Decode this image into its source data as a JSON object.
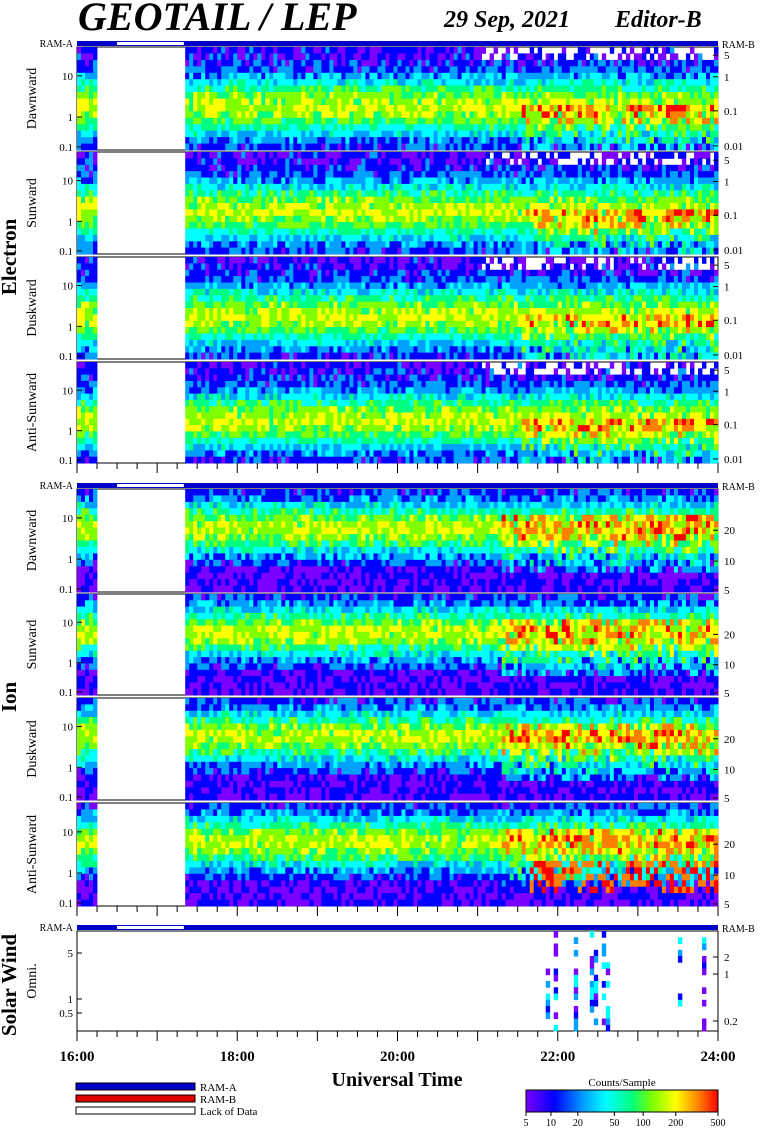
{
  "header": {
    "title": "GEOTAIL / LEP",
    "date": "29 Sep, 2021",
    "editor": "Editor-B"
  },
  "ram": {
    "a_label": "RAM-A",
    "b_label": "RAM-B"
  },
  "groups": [
    {
      "name": "Electron",
      "panels": [
        {
          "label": "Dawnward",
          "left_ticks": [
            "10",
            "1",
            "0.1"
          ],
          "right_ticks": [
            "5",
            "1",
            "0.1",
            "0.01"
          ]
        },
        {
          "label": "Sunward",
          "left_ticks": [
            "10",
            "1",
            "0.1"
          ],
          "right_ticks": [
            "5",
            "1",
            "0.1",
            "0.01"
          ]
        },
        {
          "label": "Duskward",
          "left_ticks": [
            "10",
            "1",
            "0.1"
          ],
          "right_ticks": [
            "5",
            "1",
            "0.1",
            "0.01"
          ]
        },
        {
          "label": "Anti-Sunward",
          "left_ticks": [
            "10",
            "1",
            "0.1"
          ],
          "right_ticks": [
            "5",
            "1",
            "0.1",
            "0.01"
          ]
        }
      ]
    },
    {
      "name": "Ion",
      "panels": [
        {
          "label": "Dawnward",
          "left_ticks": [
            "10",
            "1",
            "0.1"
          ],
          "right_ticks": [
            "20",
            "10",
            "5"
          ]
        },
        {
          "label": "Sunward",
          "left_ticks": [
            "10",
            "1",
            "0.1"
          ],
          "right_ticks": [
            "20",
            "10",
            "5"
          ]
        },
        {
          "label": "Duskward",
          "left_ticks": [
            "10",
            "1",
            "0.1"
          ],
          "right_ticks": [
            "20",
            "10",
            "5"
          ]
        },
        {
          "label": "Anti-Sunward",
          "left_ticks": [
            "10",
            "1",
            "0.1"
          ],
          "right_ticks": [
            "20",
            "10",
            "5"
          ]
        }
      ]
    },
    {
      "name": "Solar Wind",
      "panels": [
        {
          "label": "Omni.",
          "left_ticks": [
            "5",
            "1",
            "0.5"
          ],
          "right_ticks": [
            "2",
            "1",
            "0.2"
          ]
        }
      ]
    }
  ],
  "chart_data": {
    "type": "heatmap",
    "x_axis": {
      "label": "Universal Time",
      "range": [
        "16:00",
        "24:00"
      ],
      "ticks": [
        "16:00",
        "18:00",
        "20:00",
        "22:00",
        "24:00"
      ]
    },
    "data_gap": {
      "start": "16:15",
      "end": "17:20"
    },
    "colorbar": {
      "title": "Counts/Sample",
      "ticks": [
        "5",
        "10",
        "20",
        "50",
        "100",
        "200",
        "500"
      ],
      "colors": [
        "#7a00ff",
        "#0000ff",
        "#00a0ff",
        "#00ffff",
        "#00ff80",
        "#80ff00",
        "#ffff00",
        "#ff8000",
        "#ff0000"
      ]
    }
  },
  "legend": {
    "items": [
      {
        "label": "RAM-A",
        "color": "#0000c8"
      },
      {
        "label": "RAM-B",
        "color": "#e00000"
      },
      {
        "label": "Lack of Data",
        "color": "#ffffff"
      }
    ]
  }
}
